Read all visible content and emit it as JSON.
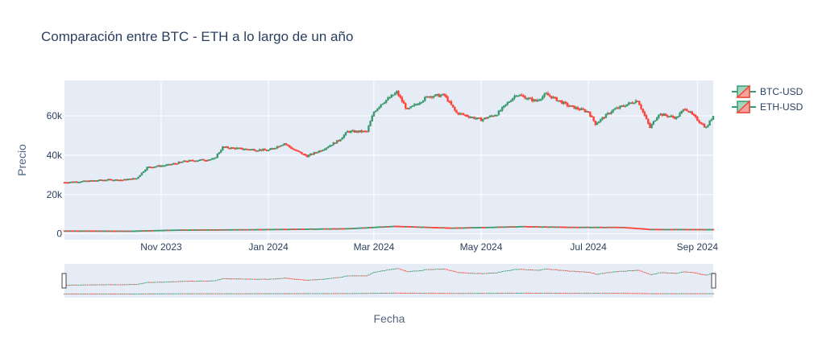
{
  "colors": {
    "increasing": "#3d9970",
    "decreasing": "#ff4136",
    "plot_bg": "#e5ecf6",
    "paper_bg": "#ffffff",
    "text": "#2a3f5f"
  },
  "chart_data": {
    "type": "candlestick",
    "title": "Comparación entre BTC - ETH a lo largo de un año",
    "xlabel": "Fecha",
    "ylabel": "Precio",
    "x_range": [
      "2023-09-07",
      "2024-09-10"
    ],
    "ylim": [
      -3000,
      78000
    ],
    "x_ticks": [
      {
        "date": "2023-11-01",
        "label": "Nov 2023"
      },
      {
        "date": "2024-01-01",
        "label": "Jan 2024"
      },
      {
        "date": "2024-03-01",
        "label": "Mar 2024"
      },
      {
        "date": "2024-05-01",
        "label": "May 2024"
      },
      {
        "date": "2024-07-01",
        "label": "Jul 2024"
      },
      {
        "date": "2024-09-01",
        "label": "Sep 2024"
      }
    ],
    "y_ticks": [
      {
        "value": 0,
        "label": "0"
      },
      {
        "value": 20000,
        "label": "20k"
      },
      {
        "value": 40000,
        "label": "40k"
      },
      {
        "value": 60000,
        "label": "60k"
      }
    ],
    "grid": true,
    "legend_position": "top-right",
    "rangeslider": true,
    "series": [
      {
        "name": "BTC-USD",
        "approx_close": [
          [
            "2023-09-07",
            26200
          ],
          [
            "2023-09-20",
            26800
          ],
          [
            "2023-10-01",
            27500
          ],
          [
            "2023-10-10",
            27400
          ],
          [
            "2023-10-18",
            28200
          ],
          [
            "2023-10-24",
            33800
          ],
          [
            "2023-11-05",
            35000
          ],
          [
            "2023-11-15",
            37000
          ],
          [
            "2023-12-01",
            38000
          ],
          [
            "2023-12-06",
            44000
          ],
          [
            "2023-12-20",
            43000
          ],
          [
            "2024-01-01",
            42500
          ],
          [
            "2024-01-10",
            46000
          ],
          [
            "2024-01-15",
            43000
          ],
          [
            "2024-01-23",
            39500
          ],
          [
            "2024-02-01",
            43000
          ],
          [
            "2024-02-10",
            47500
          ],
          [
            "2024-02-15",
            52000
          ],
          [
            "2024-02-26",
            52000
          ],
          [
            "2024-03-01",
            62000
          ],
          [
            "2024-03-05",
            66000
          ],
          [
            "2024-03-14",
            72000
          ],
          [
            "2024-03-20",
            63000
          ],
          [
            "2024-04-01",
            70000
          ],
          [
            "2024-04-10",
            70500
          ],
          [
            "2024-04-17",
            61500
          ],
          [
            "2024-05-01",
            58000
          ],
          [
            "2024-05-10",
            61000
          ],
          [
            "2024-05-21",
            71000
          ],
          [
            "2024-06-01",
            67500
          ],
          [
            "2024-06-07",
            71000
          ],
          [
            "2024-06-20",
            65000
          ],
          [
            "2024-07-01",
            62000
          ],
          [
            "2024-07-05",
            56000
          ],
          [
            "2024-07-15",
            63000
          ],
          [
            "2024-07-29",
            68000
          ],
          [
            "2024-08-05",
            54000
          ],
          [
            "2024-08-10",
            61000
          ],
          [
            "2024-08-20",
            59000
          ],
          [
            "2024-08-25",
            64000
          ],
          [
            "2024-09-01",
            58000
          ],
          [
            "2024-09-06",
            54000
          ],
          [
            "2024-09-10",
            60000
          ]
        ]
      },
      {
        "name": "ETH-USD",
        "approx_close": [
          [
            "2023-09-07",
            1630
          ],
          [
            "2023-10-15",
            1560
          ],
          [
            "2023-11-10",
            2100
          ],
          [
            "2023-12-15",
            2250
          ],
          [
            "2024-01-15",
            2500
          ],
          [
            "2024-02-15",
            2800
          ],
          [
            "2024-03-12",
            4000
          ],
          [
            "2024-04-15",
            3100
          ],
          [
            "2024-05-25",
            3850
          ],
          [
            "2024-06-20",
            3500
          ],
          [
            "2024-07-20",
            3450
          ],
          [
            "2024-08-05",
            2400
          ],
          [
            "2024-09-10",
            2350
          ]
        ]
      }
    ]
  }
}
